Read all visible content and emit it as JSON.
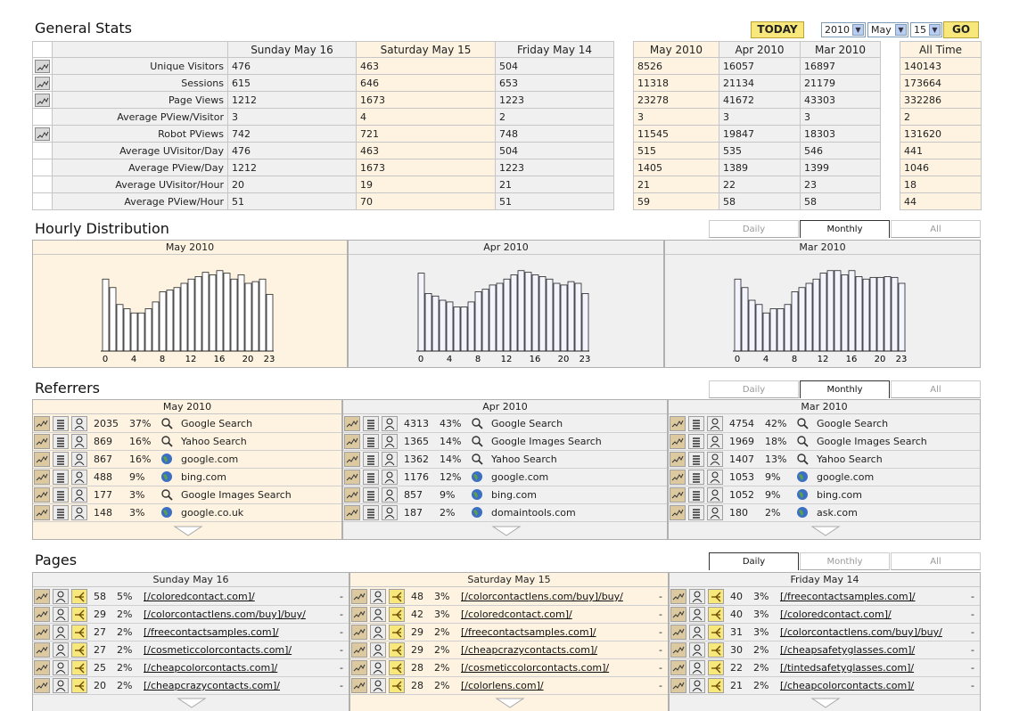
{
  "general": {
    "title": "General Stats",
    "today_label": "TODAY",
    "go_label": "GO",
    "year": "2010",
    "month": "May",
    "day": "15",
    "headers": [
      "Sunday May 16",
      "Saturday May 15",
      "Friday May 14",
      "May 2010",
      "Apr 2010",
      "Mar 2010",
      "All Time"
    ],
    "rows": [
      {
        "label": "Unique Visitors",
        "icon": true,
        "values": [
          "476",
          "463",
          "504",
          "8526",
          "16057",
          "16897",
          "140143"
        ]
      },
      {
        "label": "Sessions",
        "icon": true,
        "values": [
          "615",
          "646",
          "653",
          "11318",
          "21134",
          "21179",
          "173664"
        ]
      },
      {
        "label": "Page Views",
        "icon": true,
        "values": [
          "1212",
          "1673",
          "1223",
          "23278",
          "41672",
          "43303",
          "332286"
        ]
      },
      {
        "label": "Average PView/Visitor",
        "icon": false,
        "values": [
          "3",
          "4",
          "2",
          "3",
          "3",
          "3",
          "2"
        ]
      },
      {
        "label": "Robot PViews",
        "icon": true,
        "values": [
          "742",
          "721",
          "748",
          "11545",
          "19847",
          "18303",
          "131620"
        ]
      },
      {
        "label": "Average UVisitor/Day",
        "icon": false,
        "values": [
          "476",
          "463",
          "504",
          "515",
          "535",
          "546",
          "441"
        ]
      },
      {
        "label": "Average PView/Day",
        "icon": false,
        "values": [
          "1212",
          "1673",
          "1223",
          "1405",
          "1389",
          "1399",
          "1046"
        ]
      },
      {
        "label": "Average UVisitor/Hour",
        "icon": false,
        "values": [
          "20",
          "19",
          "21",
          "21",
          "22",
          "23",
          "18"
        ]
      },
      {
        "label": "Average PView/Hour",
        "icon": false,
        "values": [
          "51",
          "70",
          "51",
          "59",
          "58",
          "58",
          "44"
        ]
      }
    ]
  },
  "hourly": {
    "title": "Hourly Distribution",
    "tabs": [
      "Daily",
      "Monthly",
      "All"
    ],
    "active_tab": 1,
    "panels": [
      {
        "title": "May 2010",
        "bars": [
          0.85,
          0.75,
          0.55,
          0.5,
          0.45,
          0.45,
          0.5,
          0.58,
          0.7,
          0.72,
          0.75,
          0.8,
          0.85,
          0.88,
          0.93,
          0.9,
          0.95,
          0.92,
          0.85,
          0.9,
          0.8,
          0.82,
          0.85,
          0.67
        ]
      },
      {
        "title": "Apr 2010",
        "bars": [
          0.92,
          0.68,
          0.65,
          0.6,
          0.58,
          0.52,
          0.52,
          0.58,
          0.7,
          0.73,
          0.78,
          0.8,
          0.85,
          0.9,
          0.95,
          0.93,
          0.9,
          0.88,
          0.85,
          0.8,
          0.78,
          0.82,
          0.8,
          0.68
        ]
      },
      {
        "title": "Mar 2010",
        "bars": [
          0.85,
          0.75,
          0.6,
          0.55,
          0.45,
          0.5,
          0.5,
          0.55,
          0.7,
          0.75,
          0.8,
          0.85,
          0.92,
          0.95,
          0.95,
          0.9,
          0.95,
          0.88,
          0.85,
          0.87,
          0.87,
          0.88,
          0.87,
          0.8
        ]
      }
    ],
    "ticks": [
      "0",
      "4",
      "8",
      "12",
      "16",
      "20",
      "23"
    ]
  },
  "referrers": {
    "title": "Referrers",
    "tabs": [
      "Daily",
      "Monthly",
      "All"
    ],
    "active_tab": 1,
    "panels": [
      {
        "title": "May 2010",
        "rows": [
          {
            "count": "2035",
            "pct": "37%",
            "type": "search",
            "name": "Google Search"
          },
          {
            "count": "869",
            "pct": "16%",
            "type": "search",
            "name": "Yahoo Search"
          },
          {
            "count": "867",
            "pct": "16%",
            "type": "globe",
            "name": "google.com"
          },
          {
            "count": "488",
            "pct": "9%",
            "type": "globe",
            "name": "bing.com"
          },
          {
            "count": "177",
            "pct": "3%",
            "type": "search",
            "name": "Google Images Search"
          },
          {
            "count": "148",
            "pct": "3%",
            "type": "globe",
            "name": "google.co.uk"
          }
        ]
      },
      {
        "title": "Apr 2010",
        "rows": [
          {
            "count": "4313",
            "pct": "43%",
            "type": "search",
            "name": "Google Search"
          },
          {
            "count": "1365",
            "pct": "14%",
            "type": "search",
            "name": "Google Images Search"
          },
          {
            "count": "1362",
            "pct": "14%",
            "type": "search",
            "name": "Yahoo Search"
          },
          {
            "count": "1176",
            "pct": "12%",
            "type": "globe",
            "name": "google.com"
          },
          {
            "count": "857",
            "pct": "9%",
            "type": "globe",
            "name": "bing.com"
          },
          {
            "count": "187",
            "pct": "2%",
            "type": "globe",
            "name": "domaintools.com"
          }
        ]
      },
      {
        "title": "Mar 2010",
        "rows": [
          {
            "count": "4754",
            "pct": "42%",
            "type": "search",
            "name": "Google Search"
          },
          {
            "count": "1969",
            "pct": "18%",
            "type": "search",
            "name": "Google Images Search"
          },
          {
            "count": "1407",
            "pct": "13%",
            "type": "search",
            "name": "Yahoo Search"
          },
          {
            "count": "1053",
            "pct": "9%",
            "type": "globe",
            "name": "google.com"
          },
          {
            "count": "1052",
            "pct": "9%",
            "type": "globe",
            "name": "bing.com"
          },
          {
            "count": "180",
            "pct": "2%",
            "type": "globe",
            "name": "ask.com"
          }
        ]
      }
    ]
  },
  "pages": {
    "title": "Pages",
    "tabs": [
      "Daily",
      "Monthly",
      "All"
    ],
    "active_tab": 0,
    "panels": [
      {
        "title": "Sunday May 16",
        "rows": [
          {
            "count": "58",
            "pct": "5%",
            "url": "[/coloredcontact.com]/"
          },
          {
            "count": "29",
            "pct": "2%",
            "url": "[/colorcontactlens.com/buy]/buy/"
          },
          {
            "count": "27",
            "pct": "2%",
            "url": "[/freecontactsamples.com]/"
          },
          {
            "count": "27",
            "pct": "2%",
            "url": "[/cosmeticcolorcontacts.com]/"
          },
          {
            "count": "25",
            "pct": "2%",
            "url": "[/cheapcolorcontacts.com]/"
          },
          {
            "count": "20",
            "pct": "2%",
            "url": "[/cheapcrazycontacts.com]/"
          }
        ]
      },
      {
        "title": "Saturday May 15",
        "rows": [
          {
            "count": "48",
            "pct": "3%",
            "url": "[/colorcontactlens.com/buy]/buy/"
          },
          {
            "count": "42",
            "pct": "3%",
            "url": "[/coloredcontact.com]/"
          },
          {
            "count": "29",
            "pct": "2%",
            "url": "[/freecontactsamples.com]/"
          },
          {
            "count": "29",
            "pct": "2%",
            "url": "[/cheapcrazycontacts.com]/"
          },
          {
            "count": "28",
            "pct": "2%",
            "url": "[/cosmeticcolorcontacts.com]/"
          },
          {
            "count": "28",
            "pct": "2%",
            "url": "[/colorlens.com]/"
          }
        ]
      },
      {
        "title": "Friday May 14",
        "rows": [
          {
            "count": "40",
            "pct": "3%",
            "url": "[/freecontactsamples.com]/"
          },
          {
            "count": "40",
            "pct": "3%",
            "url": "[/coloredcontact.com]/"
          },
          {
            "count": "31",
            "pct": "3%",
            "url": "[/colorcontactlens.com/buy]/buy/"
          },
          {
            "count": "30",
            "pct": "2%",
            "url": "[/cheapsafetyglasses.com]/"
          },
          {
            "count": "22",
            "pct": "2%",
            "url": "[/tintedsafetyglasses.com]/"
          },
          {
            "count": "21",
            "pct": "2%",
            "url": "[/cheapcolorcontacts.com]/"
          }
        ]
      }
    ],
    "dash": "-"
  },
  "colors": {
    "highlight": "#fdf3e0",
    "gray": "#f0f0f0",
    "button": "#f8e77a"
  }
}
